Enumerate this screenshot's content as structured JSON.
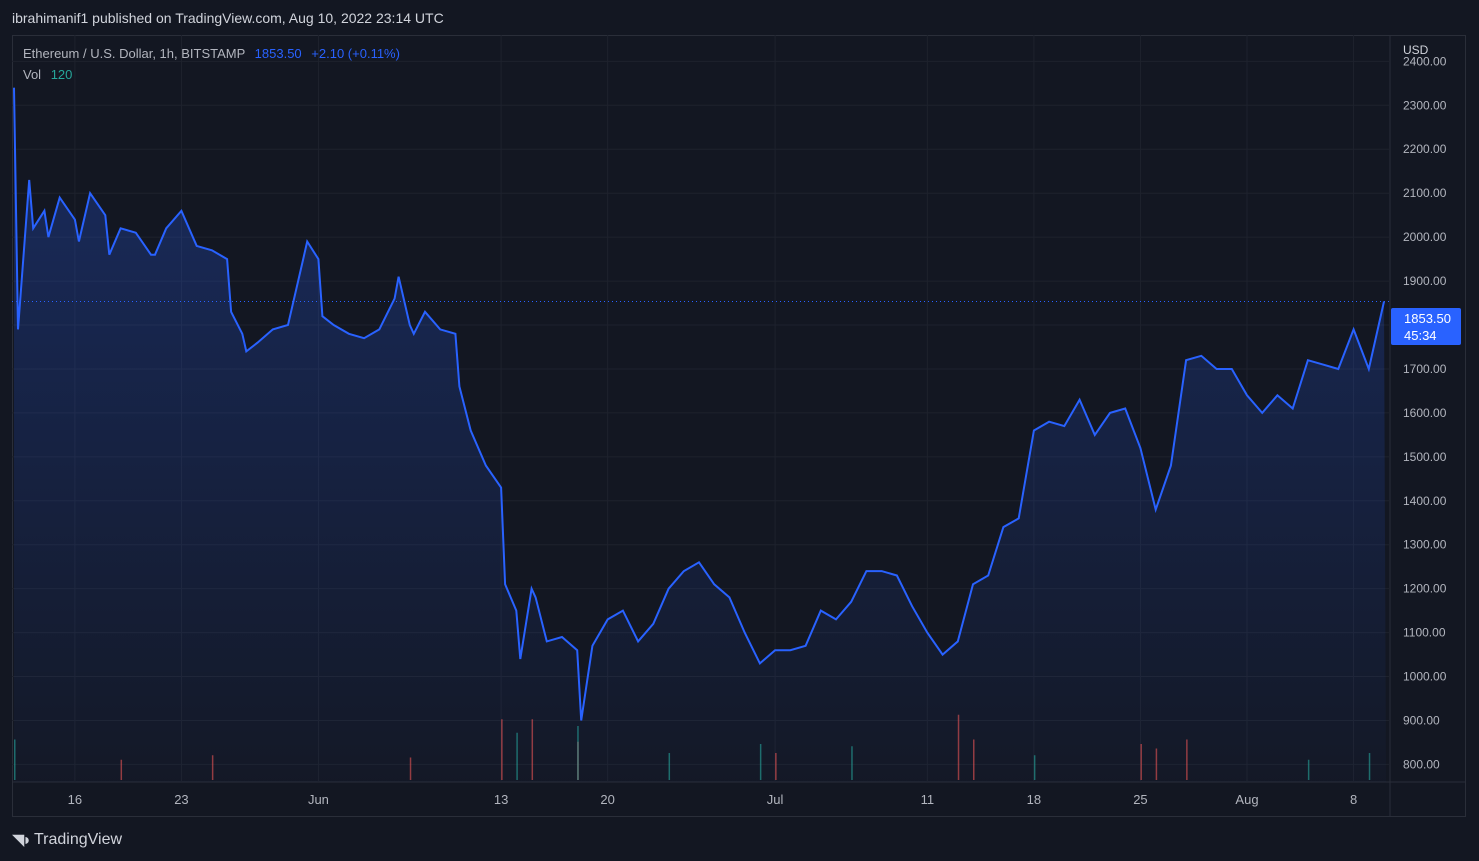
{
  "header": {
    "published": "ibrahimanif1 published on TradingView.com, Aug 10, 2022 23:14 UTC"
  },
  "legend": {
    "symbol": "Ethereum / U.S. Dollar, 1h, BITSTAMP",
    "price": "1853.50",
    "change": "+2.10 (+0.11%)",
    "vol_label": "Vol",
    "vol_value": "120"
  },
  "price_tag": {
    "price": "1853.50",
    "countdown": "45:34"
  },
  "footer": {
    "logo_icon": "tradingview-logo-icon",
    "brand": "TradingView"
  },
  "colors": {
    "line": "#2962ff",
    "up": "#26a69a",
    "down": "#ef5350",
    "bg": "#131722",
    "grid": "#1e222d"
  },
  "chart_data": {
    "type": "line",
    "title": "Ethereum / U.S. Dollar, 1h, BITSTAMP",
    "ylabel": "USD",
    "ylim": [
      760,
      2460
    ],
    "y_ticks": [
      800,
      900,
      1000,
      1100,
      1200,
      1300,
      1400,
      1500,
      1600,
      1700,
      1800,
      1900,
      2000,
      2100,
      2200,
      2300,
      2400
    ],
    "y_tick_labels": [
      "800.00",
      "900.00",
      "1000.00",
      "1100.00",
      "1200.00",
      "1300.00",
      "1400.00",
      "1500.00",
      "1600.00",
      "1700.00",
      "1800.00",
      "1900.00",
      "2000.00",
      "2100.00",
      "2200.00",
      "2300.00",
      "2400.00"
    ],
    "x_start": "2022-05-12",
    "x_end": "2022-08-10",
    "x_ticks": [
      {
        "date": "2022-05-16",
        "label": "16"
      },
      {
        "date": "2022-05-23",
        "label": "23"
      },
      {
        "date": "2022-06-01",
        "label": "Jun"
      },
      {
        "date": "2022-06-13",
        "label": "13"
      },
      {
        "date": "2022-06-20",
        "label": "20"
      },
      {
        "date": "2022-07-01",
        "label": "Jul"
      },
      {
        "date": "2022-07-11",
        "label": "11"
      },
      {
        "date": "2022-07-18",
        "label": "18"
      },
      {
        "date": "2022-07-25",
        "label": "25"
      },
      {
        "date": "2022-08-01",
        "label": "Aug"
      },
      {
        "date": "2022-08-08",
        "label": "8"
      }
    ],
    "last_price": 1853.5,
    "series": [
      {
        "points": [
          [
            "2022-05-12",
            2340
          ],
          [
            "2022-05-12",
            1790
          ],
          [
            "2022-05-13",
            2130
          ],
          [
            "2022-05-13",
            2020
          ],
          [
            "2022-05-14",
            2060
          ],
          [
            "2022-05-14",
            2000
          ],
          [
            "2022-05-15",
            2090
          ],
          [
            "2022-05-16",
            2040
          ],
          [
            "2022-05-16",
            1990
          ],
          [
            "2022-05-17",
            2100
          ],
          [
            "2022-05-18",
            2050
          ],
          [
            "2022-05-18",
            1960
          ],
          [
            "2022-05-19",
            2020
          ],
          [
            "2022-05-20",
            2010
          ],
          [
            "2022-05-21",
            1960
          ],
          [
            "2022-05-21",
            1960
          ],
          [
            "2022-05-22",
            2020
          ],
          [
            "2022-05-23",
            2060
          ],
          [
            "2022-05-24",
            1980
          ],
          [
            "2022-05-25",
            1970
          ],
          [
            "2022-05-26",
            1950
          ],
          [
            "2022-05-26",
            1830
          ],
          [
            "2022-05-27",
            1780
          ],
          [
            "2022-05-27",
            1740
          ],
          [
            "2022-05-28",
            1760
          ],
          [
            "2022-05-29",
            1790
          ],
          [
            "2022-05-30",
            1800
          ],
          [
            "2022-05-31",
            1950
          ],
          [
            "2022-05-31",
            1990
          ],
          [
            "2022-06-01",
            1950
          ],
          [
            "2022-06-01",
            1820
          ],
          [
            "2022-06-02",
            1800
          ],
          [
            "2022-06-03",
            1780
          ],
          [
            "2022-06-04",
            1770
          ],
          [
            "2022-06-05",
            1790
          ],
          [
            "2022-06-06",
            1860
          ],
          [
            "2022-06-06",
            1910
          ],
          [
            "2022-06-07",
            1800
          ],
          [
            "2022-06-07",
            1780
          ],
          [
            "2022-06-08",
            1830
          ],
          [
            "2022-06-09",
            1790
          ],
          [
            "2022-06-10",
            1780
          ],
          [
            "2022-06-10",
            1660
          ],
          [
            "2022-06-11",
            1560
          ],
          [
            "2022-06-12",
            1480
          ],
          [
            "2022-06-13",
            1430
          ],
          [
            "2022-06-13",
            1210
          ],
          [
            "2022-06-14",
            1150
          ],
          [
            "2022-06-14",
            1040
          ],
          [
            "2022-06-15",
            1200
          ],
          [
            "2022-06-15",
            1180
          ],
          [
            "2022-06-16",
            1080
          ],
          [
            "2022-06-17",
            1090
          ],
          [
            "2022-06-18",
            1060
          ],
          [
            "2022-06-18",
            900
          ],
          [
            "2022-06-19",
            1070
          ],
          [
            "2022-06-20",
            1130
          ],
          [
            "2022-06-21",
            1150
          ],
          [
            "2022-06-22",
            1080
          ],
          [
            "2022-06-23",
            1120
          ],
          [
            "2022-06-24",
            1200
          ],
          [
            "2022-06-25",
            1240
          ],
          [
            "2022-06-26",
            1260
          ],
          [
            "2022-06-27",
            1210
          ],
          [
            "2022-06-28",
            1180
          ],
          [
            "2022-06-29",
            1100
          ],
          [
            "2022-06-30",
            1030
          ],
          [
            "2022-07-01",
            1060
          ],
          [
            "2022-07-02",
            1060
          ],
          [
            "2022-07-03",
            1070
          ],
          [
            "2022-07-04",
            1150
          ],
          [
            "2022-07-05",
            1130
          ],
          [
            "2022-07-06",
            1170
          ],
          [
            "2022-07-07",
            1240
          ],
          [
            "2022-07-08",
            1240
          ],
          [
            "2022-07-09",
            1230
          ],
          [
            "2022-07-10",
            1160
          ],
          [
            "2022-07-11",
            1100
          ],
          [
            "2022-07-12",
            1050
          ],
          [
            "2022-07-13",
            1080
          ],
          [
            "2022-07-14",
            1210
          ],
          [
            "2022-07-15",
            1230
          ],
          [
            "2022-07-16",
            1340
          ],
          [
            "2022-07-17",
            1360
          ],
          [
            "2022-07-18",
            1560
          ],
          [
            "2022-07-19",
            1580
          ],
          [
            "2022-07-20",
            1570
          ],
          [
            "2022-07-21",
            1630
          ],
          [
            "2022-07-22",
            1550
          ],
          [
            "2022-07-23",
            1600
          ],
          [
            "2022-07-24",
            1610
          ],
          [
            "2022-07-25",
            1520
          ],
          [
            "2022-07-26",
            1380
          ],
          [
            "2022-07-27",
            1480
          ],
          [
            "2022-07-28",
            1720
          ],
          [
            "2022-07-29",
            1730
          ],
          [
            "2022-07-30",
            1700
          ],
          [
            "2022-07-31",
            1700
          ],
          [
            "2022-08-01",
            1640
          ],
          [
            "2022-08-02",
            1600
          ],
          [
            "2022-08-03",
            1640
          ],
          [
            "2022-08-04",
            1610
          ],
          [
            "2022-08-05",
            1720
          ],
          [
            "2022-08-06",
            1710
          ],
          [
            "2022-08-07",
            1700
          ],
          [
            "2022-08-08",
            1790
          ],
          [
            "2022-08-09",
            1700
          ],
          [
            "2022-08-10",
            1853.5
          ]
        ]
      }
    ],
    "volume": [
      {
        "date": "2022-05-12",
        "value": 90,
        "dir": "up"
      },
      {
        "date": "2022-05-19",
        "value": 45,
        "dir": "down"
      },
      {
        "date": "2022-05-25",
        "value": 55,
        "dir": "down"
      },
      {
        "date": "2022-06-07",
        "value": 50,
        "dir": "down"
      },
      {
        "date": "2022-06-13",
        "value": 135,
        "dir": "down"
      },
      {
        "date": "2022-06-14",
        "value": 105,
        "dir": "up"
      },
      {
        "date": "2022-06-15",
        "value": 135,
        "dir": "down"
      },
      {
        "date": "2022-06-18",
        "value": 85,
        "dir": "down"
      },
      {
        "date": "2022-06-18",
        "value": 120,
        "dir": "up"
      },
      {
        "date": "2022-06-24",
        "value": 60,
        "dir": "up"
      },
      {
        "date": "2022-06-30",
        "value": 80,
        "dir": "up"
      },
      {
        "date": "2022-07-01",
        "value": 60,
        "dir": "down"
      },
      {
        "date": "2022-07-06",
        "value": 75,
        "dir": "up"
      },
      {
        "date": "2022-07-13",
        "value": 145,
        "dir": "down"
      },
      {
        "date": "2022-07-14",
        "value": 90,
        "dir": "down"
      },
      {
        "date": "2022-07-18",
        "value": 55,
        "dir": "up"
      },
      {
        "date": "2022-07-25",
        "value": 80,
        "dir": "down"
      },
      {
        "date": "2022-07-26",
        "value": 70,
        "dir": "down"
      },
      {
        "date": "2022-07-28",
        "value": 90,
        "dir": "down"
      },
      {
        "date": "2022-08-05",
        "value": 45,
        "dir": "up"
      },
      {
        "date": "2022-08-09",
        "value": 60,
        "dir": "up"
      }
    ]
  }
}
